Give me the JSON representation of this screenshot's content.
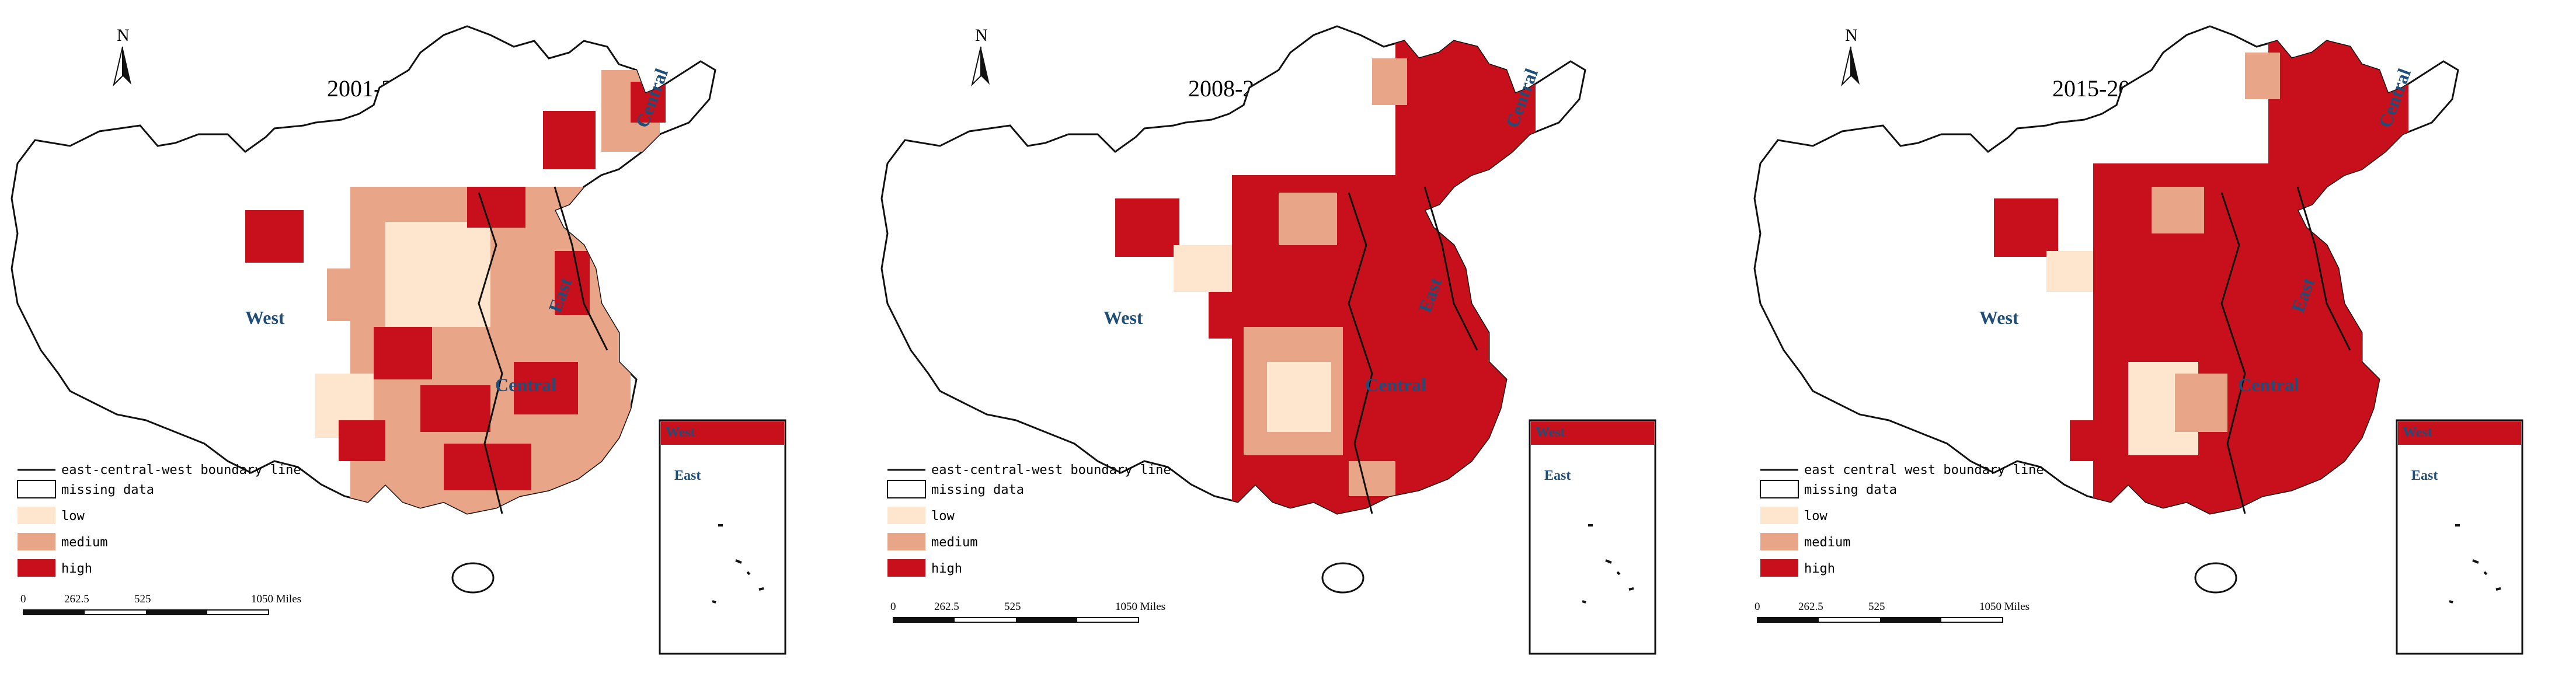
{
  "panels": [
    {
      "title": "2001-2007",
      "region_labels": {
        "west": "West",
        "central": "Central",
        "east": "East",
        "central_ne": "Central"
      },
      "inset_labels": {
        "west": "West",
        "east": "East"
      }
    },
    {
      "title": "2008-2014",
      "region_labels": {
        "west": "West",
        "central": "Central",
        "east": "East",
        "central_ne": "Central"
      },
      "inset_labels": {
        "west": "West",
        "east": "East"
      }
    },
    {
      "title": "2015-2021",
      "region_labels": {
        "west": "West",
        "central": "Central",
        "east": "East",
        "central_ne": "Central"
      },
      "inset_labels": {
        "west": "West",
        "east": "East"
      }
    }
  ],
  "legend": {
    "boundary_line": "east-central-west boundary line",
    "items": [
      {
        "label": "missing data",
        "color": "#ffffff"
      },
      {
        "label": "low",
        "color": "#fde6cd"
      },
      {
        "label": "medium",
        "color": "#e8a588"
      },
      {
        "label": "high",
        "color": "#c8101c"
      }
    ],
    "boundary_label_panel3": "east central west boundary line"
  },
  "scale": {
    "ticks": [
      "0",
      "262.5",
      "525",
      "1050 Miles"
    ]
  },
  "north_label": "N",
  "colors": {
    "high": "#c8101c",
    "medium": "#e8a588",
    "low": "#fde6cd",
    "missing": "#ffffff",
    "outline": "#222222",
    "label": "#1f4e79"
  }
}
